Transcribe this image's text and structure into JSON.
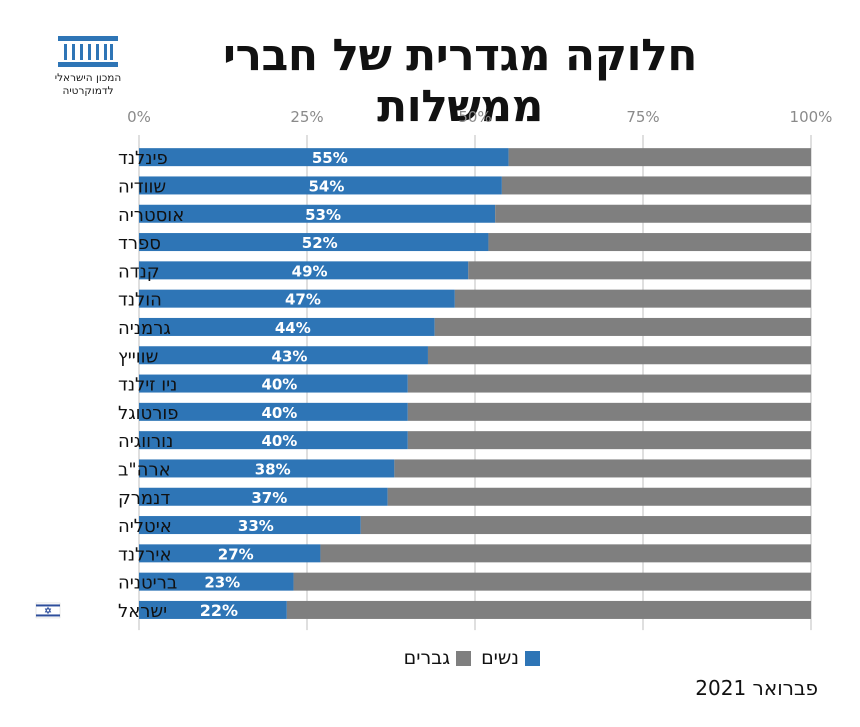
{
  "header": {
    "logo_text": "המכון הישראלי לדמוקרטיה",
    "title": "חלוקה מגדרית של חברי ממשלות"
  },
  "footer": {
    "date": "פברואר 2021"
  },
  "colors": {
    "women": "#2e75b6",
    "men": "#7f7f7f",
    "axis": "#bfbfbf",
    "israel_flag": "#2e4e9b"
  },
  "chart_data": {
    "type": "bar",
    "orientation": "horizontal",
    "stacked": true,
    "percent_stacked": true,
    "title": "חלוקה מגדרית של חברי ממשלות",
    "xlim": [
      0,
      100
    ],
    "x_ticks": [
      "0%",
      "25%",
      "50%",
      "75%",
      "100%"
    ],
    "grid": true,
    "legend_position": "bottom",
    "categories": [
      "פינלנד",
      "שוודיה",
      "אוסטריה",
      "ספרד",
      "קנדה",
      "הולנד",
      "גרמניה",
      "שווייץ",
      "ניו זילנד",
      "פורטוגל",
      "נורווגיה",
      "ארה\"ב",
      "דנמרק",
      "איטליה",
      "אירלנד",
      "בריטניה",
      "ישראל"
    ],
    "series": [
      {
        "name": "נשים",
        "values": [
          55,
          54,
          53,
          52,
          49,
          47,
          44,
          43,
          40,
          40,
          40,
          38,
          37,
          33,
          27,
          23,
          22
        ]
      },
      {
        "name": "גברים",
        "values": [
          45,
          46,
          47,
          48,
          51,
          53,
          56,
          57,
          60,
          60,
          60,
          62,
          63,
          67,
          73,
          77,
          78
        ]
      }
    ],
    "data_labels": [
      "55%",
      "54%",
      "53%",
      "52%",
      "49%",
      "47%",
      "44%",
      "43%",
      "40%",
      "40%",
      "40%",
      "38%",
      "37%",
      "33%",
      "27%",
      "23%",
      "22%"
    ],
    "highlight_category": "ישראל"
  },
  "legend": {
    "women": "נשים",
    "men": "גברים"
  }
}
